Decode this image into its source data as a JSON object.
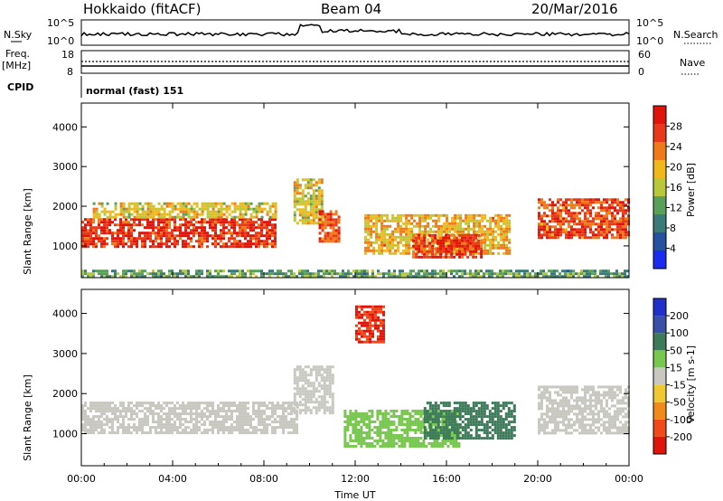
{
  "header": {
    "radar_title": "Hokkaido (fitACF)",
    "beam": "Beam 04",
    "date": "20/Mar/2016"
  },
  "noise_panel": {
    "left_label": "N.Sky",
    "right_label": "N.Search",
    "ticks": [
      "10^5",
      "10^0"
    ],
    "right_ticks": [
      "10^5",
      "10^0"
    ]
  },
  "freq_panel": {
    "left_label_line1": "Freq.",
    "left_label_line2": "[MHz]",
    "left_ticks": [
      "18",
      "8"
    ],
    "right_label": "Nave",
    "right_ticks": [
      "60",
      "0"
    ]
  },
  "cpid": {
    "label": "CPID",
    "value": "normal (fast) 151"
  },
  "x_axis": {
    "label": "Time UT",
    "ticks": [
      "00:00",
      "04:00",
      "08:00",
      "12:00",
      "16:00",
      "20:00",
      "00:00"
    ]
  },
  "colors": {
    "power": [
      "#1a2cf0",
      "#2650a0",
      "#3a7a78",
      "#5aa05a",
      "#b8c83a",
      "#f0b81a",
      "#f07a1a",
      "#e83a1a",
      "#e0140a"
    ],
    "velocity": [
      "#e0140a",
      "#f04a1a",
      "#f08a1a",
      "#f0c832",
      "#c8c8c0",
      "#78c850",
      "#3c7a5a",
      "#3a50a8",
      "#2030c8"
    ]
  },
  "chart_data": [
    {
      "type": "heatmap",
      "title": "",
      "xlabel": "",
      "ylabel": "Slant Range [km]",
      "xlim": [
        0,
        24
      ],
      "ylim": [
        200,
        4600
      ],
      "yticks": [
        "4000",
        "3000",
        "2000",
        "1000"
      ],
      "colorbar": {
        "label": "Power [dB]",
        "ticks": [
          "28",
          "24",
          "20",
          "16",
          "12",
          "8",
          "4"
        ]
      },
      "regions": [
        {
          "t": [
            0.0,
            8.5
          ],
          "range": [
            1000,
            1700
          ],
          "power": 28
        },
        {
          "t": [
            0.5,
            8.5
          ],
          "range": [
            1700,
            2100
          ],
          "power": 18
        },
        {
          "t": [
            9.3,
            10.6
          ],
          "range": [
            1600,
            2700
          ],
          "power": 18
        },
        {
          "t": [
            10.4,
            11.3
          ],
          "range": [
            1100,
            1900
          ],
          "power": 26
        },
        {
          "t": [
            12.4,
            18.8
          ],
          "range": [
            800,
            1800
          ],
          "power": 20
        },
        {
          "t": [
            14.5,
            17.5
          ],
          "range": [
            750,
            1300
          ],
          "power": 28
        },
        {
          "t": [
            20.0,
            24.0
          ],
          "range": [
            1200,
            2200
          ],
          "power": 26
        },
        {
          "t": [
            0.0,
            24.0
          ],
          "range": [
            200,
            400
          ],
          "power": 12
        }
      ]
    },
    {
      "type": "heatmap",
      "title": "",
      "xlabel": "Time UT",
      "ylabel": "Slant Range [km]",
      "xlim": [
        0,
        24
      ],
      "ylim": [
        200,
        4600
      ],
      "yticks": [
        "4000",
        "3000",
        "2000",
        "1000"
      ],
      "colorbar": {
        "label": "Velocity [m s-1]",
        "ticks": [
          "200",
          "100",
          "50",
          "15",
          "-15",
          "-50",
          "-100",
          "-200"
        ]
      },
      "regions": [
        {
          "t": [
            0.0,
            9.5
          ],
          "range": [
            1000,
            1800
          ],
          "velocity": 0
        },
        {
          "t": [
            9.3,
            11.0
          ],
          "range": [
            1500,
            2700
          ],
          "velocity": 0
        },
        {
          "t": [
            11.5,
            16.5
          ],
          "range": [
            700,
            1600
          ],
          "velocity": 30
        },
        {
          "t": [
            15.0,
            19.0
          ],
          "range": [
            900,
            1800
          ],
          "velocity": 70
        },
        {
          "t": [
            20.0,
            24.0
          ],
          "range": [
            1000,
            2200
          ],
          "velocity": 0
        },
        {
          "t": [
            12.0,
            13.2
          ],
          "range": [
            3300,
            4200
          ],
          "velocity": -200
        }
      ]
    }
  ]
}
